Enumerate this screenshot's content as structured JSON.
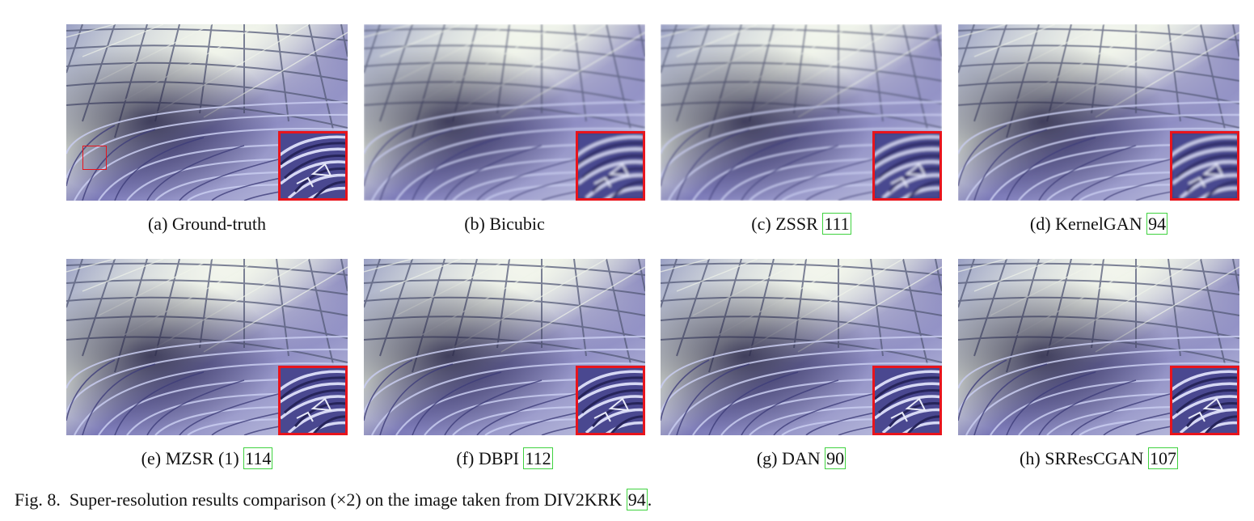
{
  "panels": [
    {
      "label": "(a)",
      "method": "Ground-truth",
      "ref": ""
    },
    {
      "label": "(b)",
      "method": "Bicubic",
      "ref": ""
    },
    {
      "label": "(c)",
      "method": "ZSSR",
      "ref": "111"
    },
    {
      "label": "(d)",
      "method": "KernelGAN",
      "ref": "94"
    },
    {
      "label": "(e)",
      "method": "MZSR (1)",
      "ref": "114"
    },
    {
      "label": "(f)",
      "method": "DBPI",
      "ref": "112"
    },
    {
      "label": "(g)",
      "method": "DAN",
      "ref": "90"
    },
    {
      "label": "(h)",
      "method": "SRResCGAN",
      "ref": "107"
    }
  ],
  "figure": {
    "number": "Fig. 8.",
    "caption_text": "Super-resolution results comparison (×2) on the image taken from DIV2KRK",
    "ref": "94",
    "end": "."
  },
  "colors": {
    "inset_border": "#e8141c",
    "ref_box": "#3fd23f",
    "structure_light": "#dfe6dc",
    "structure_purple": "#5d5bb4"
  }
}
